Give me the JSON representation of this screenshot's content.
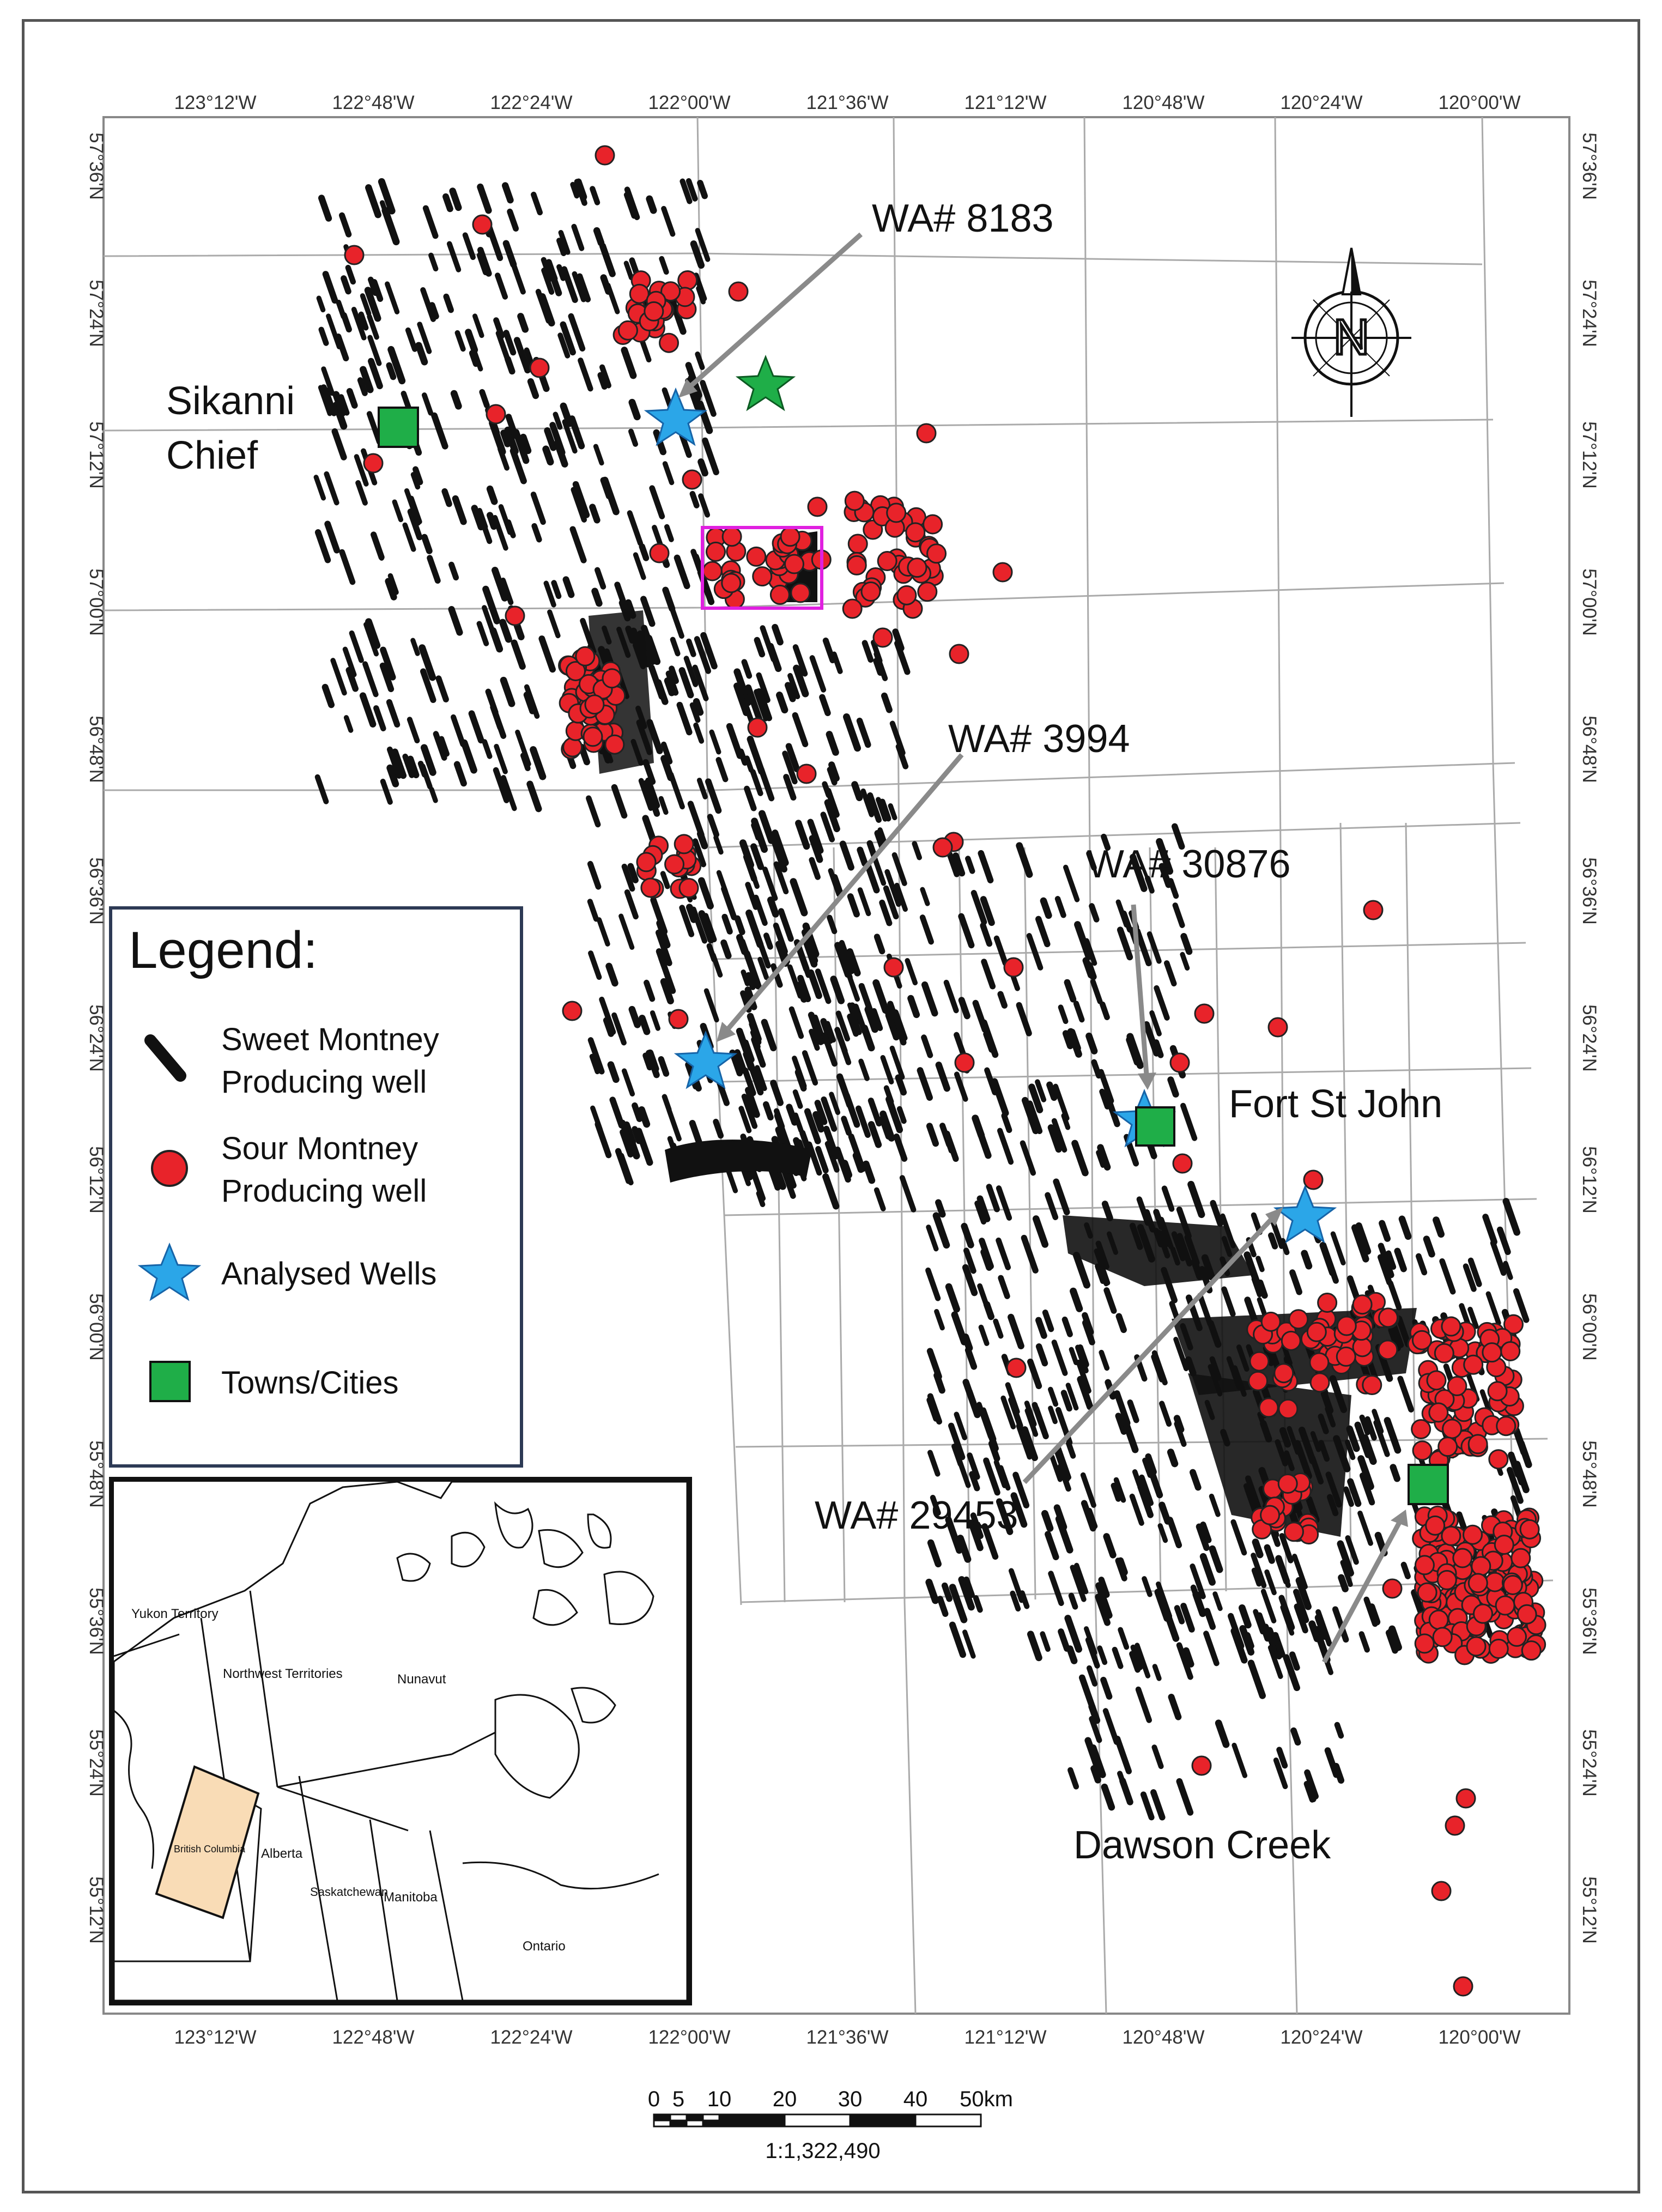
{
  "map": {
    "top_lon_ticks": [
      "123°12'W",
      "122°48'W",
      "122°24'W",
      "122°00'W",
      "121°36'W",
      "121°12'W",
      "120°48'W",
      "120°24'W",
      "120°00'W"
    ],
    "bottom_lon_ticks": [
      "123°12'W",
      "122°48'W",
      "122°24'W",
      "122°00'W",
      "121°36'W",
      "121°12'W",
      "120°48'W",
      "120°24'W",
      "120°00'W"
    ],
    "left_lat_ticks": [
      "57°36'N",
      "57°24'N",
      "57°12'N",
      "57°00'N",
      "56°48'N",
      "56°36'N",
      "56°24'N",
      "56°12'N",
      "56°00'N",
      "55°48'N",
      "55°36'N",
      "55°24'N",
      "55°12'N"
    ],
    "right_lat_ticks": [
      "57°36'N",
      "57°24'N",
      "57°12'N",
      "57°00'N",
      "56°48'N",
      "56°36'N",
      "56°24'N",
      "56°12'N",
      "56°00'N",
      "55°48'N",
      "55°36'N",
      "55°24'N",
      "55°12'N"
    ]
  },
  "callouts": {
    "wa8183": "WA# 8183",
    "wa3994": "WA# 3994",
    "wa30876": "WA# 30876",
    "wa29453": "WA# 29453"
  },
  "towns": {
    "sikanni_line1": "Sikanni",
    "sikanni_line2": "Chief",
    "fort_st_john": "Fort St John",
    "dawson_creek": "Dawson Creek"
  },
  "legend": {
    "title": "Legend:",
    "sweet_line1": "Sweet Montney",
    "sweet_line2": "Producing well",
    "sour_line1": "Sour Montney",
    "sour_line2": "Producing well",
    "analysed": "Analysed Wells",
    "towns": "Towns/Cities"
  },
  "inset": {
    "yukon": "Yukon Territory",
    "nwt": "Northwest Territories",
    "nunavut": "Nunavut",
    "bc": "British Columbia",
    "alberta": "Alberta",
    "saskatchewan": "Saskatchewan",
    "manitoba": "Manitoba",
    "ontario": "Ontario"
  },
  "scale": {
    "ticks": [
      "0",
      "5",
      "10",
      "20",
      "30",
      "40",
      "50km"
    ],
    "ratio": "1:1,322,490"
  },
  "colors": {
    "sour": "#e8232a",
    "analysed_star": "#2ba6e8",
    "town": "#1fae48",
    "highlight_box": "#e020e0",
    "inset_fill": "#f9dcb6"
  }
}
